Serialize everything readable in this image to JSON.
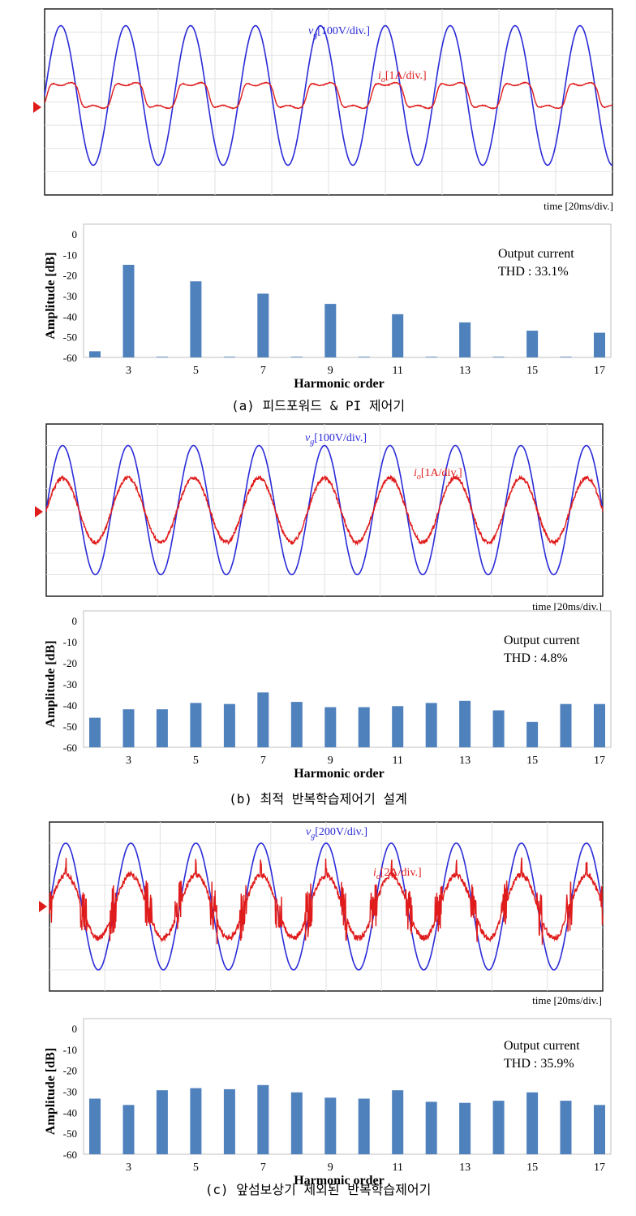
{
  "panels": [
    {
      "id": "a",
      "caption": "(a) 피드포워드 & PI 제어기",
      "waveform": {
        "voltage_label_sym": "v",
        "voltage_label_sub": "g",
        "voltage_label_scale": "[100V/div.]",
        "current_label_sym": "i",
        "current_label_sub": "o",
        "current_label_scale": "[1A/div.]",
        "time_label": "time",
        "time_scale": "[20ms/div.]",
        "cycles_shown": 8.75,
        "voltage_amplitude_div": 3,
        "current_amplitude_div": 0.55,
        "current_shape": "distorted",
        "voltage_color": "#2b2bd8",
        "current_color": "#e01b1b"
      },
      "chart_data": {
        "type": "bar",
        "title": "",
        "xlabel": "Harmonic order",
        "ylabel": "Amplitude [dB]",
        "ylim": [
          -60,
          0
        ],
        "yticks": [
          "0",
          "-10",
          "-20",
          "-30",
          "-40",
          "-50",
          "-60"
        ],
        "xtick_labels": [
          "3",
          "5",
          "7",
          "9",
          "11",
          "13",
          "15",
          "17"
        ],
        "x": [
          2,
          3,
          4,
          5,
          6,
          7,
          8,
          9,
          10,
          11,
          12,
          13,
          14,
          15,
          16,
          17
        ],
        "values": [
          -57,
          -15,
          -60,
          -23,
          -60,
          -29,
          -60,
          -34,
          -60,
          -39,
          -60,
          -43,
          -60,
          -47,
          -60,
          -48
        ],
        "annotation_line1": "Output current",
        "annotation_line2": "THD : 33.1%",
        "bar_color": "#4f81bd"
      }
    },
    {
      "id": "b",
      "caption": "(b) 최적 반복학습제어기 설계",
      "waveform": {
        "voltage_label_sym": "v",
        "voltage_label_sub": "g",
        "voltage_label_scale": "[100V/div.]",
        "current_label_sym": "i",
        "current_label_sub": "o",
        "current_label_scale": "[1A/div.]",
        "time_label": "time",
        "time_scale": "[20ms/div.]",
        "cycles_shown": 8.5,
        "voltage_amplitude_div": 3,
        "current_amplitude_div": 1.5,
        "current_shape": "sine",
        "voltage_color": "#2b2bd8",
        "current_color": "#e01b1b"
      },
      "chart_data": {
        "type": "bar",
        "title": "",
        "xlabel": "Harmonic order",
        "ylabel": "Amplitude [dB]",
        "ylim": [
          -60,
          0
        ],
        "yticks": [
          "0",
          "-10",
          "-20",
          "-30",
          "-40",
          "-50",
          "-60"
        ],
        "xtick_labels": [
          "3",
          "5",
          "7",
          "9",
          "11",
          "13",
          "15",
          "17"
        ],
        "x": [
          2,
          3,
          4,
          5,
          6,
          7,
          8,
          9,
          10,
          11,
          12,
          13,
          14,
          15,
          16,
          17
        ],
        "values": [
          -46,
          -42,
          -42,
          -39,
          -39.5,
          -34,
          -38.5,
          -41,
          -41,
          -40.5,
          -39,
          -38,
          -42.5,
          -48,
          -39.5,
          -39.5
        ],
        "annotation_line1": "Output current",
        "annotation_line2": "THD : 4.8%",
        "bar_color": "#4f81bd"
      }
    },
    {
      "id": "c",
      "caption": "(c) 앞섬보상기 제외된 반복학습제어기",
      "waveform": {
        "voltage_label_sym": "v",
        "voltage_label_sub": "g",
        "voltage_label_scale": "[200V/div.]",
        "current_label_sym": "i",
        "current_label_sub": "o",
        "current_label_scale": "[2A/div.]",
        "time_label": "time",
        "time_scale": "[20ms/div.]",
        "cycles_shown": 8.5,
        "voltage_amplitude_div": 3,
        "current_amplitude_div": 1.5,
        "current_shape": "spiky",
        "voltage_color": "#2b2bd8",
        "current_color": "#e01b1b"
      },
      "chart_data": {
        "type": "bar",
        "title": "",
        "xlabel": "Harmonic order",
        "ylabel": "Amplitude [dB]",
        "ylim": [
          -60,
          0
        ],
        "yticks": [
          "0",
          "-10",
          "-20",
          "-30",
          "-40",
          "-50",
          "-60"
        ],
        "xtick_labels": [
          "3",
          "5",
          "7",
          "9",
          "11",
          "13",
          "15",
          "17"
        ],
        "x": [
          2,
          3,
          4,
          5,
          6,
          7,
          8,
          9,
          10,
          11,
          12,
          13,
          14,
          15,
          16,
          17
        ],
        "values": [
          -33.5,
          -36.5,
          -29.5,
          -28.5,
          -29,
          -27,
          -30.5,
          -33,
          -33.5,
          -29.5,
          -35,
          -35.5,
          -34.5,
          -30.5,
          -34.5,
          -36.5
        ],
        "annotation_line1": "Output current",
        "annotation_line2": "THD : 35.9%",
        "bar_color": "#4f81bd"
      }
    }
  ]
}
